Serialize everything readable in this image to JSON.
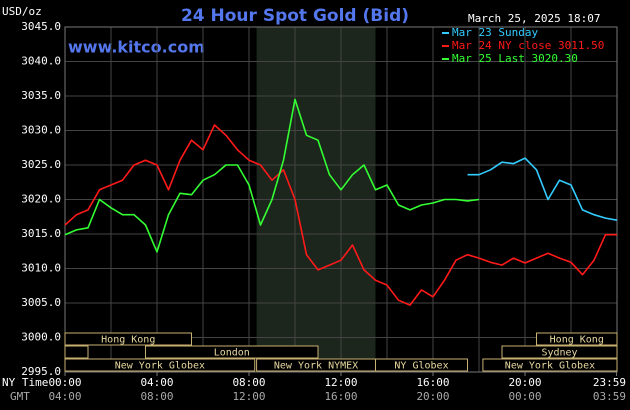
{
  "chart_data": {
    "type": "line",
    "title": "24 Hour Spot Gold (Bid)",
    "website": "www.kitco.com",
    "y_label": "USD/oz",
    "timestamp": "March 25, 2025 18:07",
    "x_row_labels": [
      "NY Time",
      "GMT"
    ],
    "x": [
      0,
      0.5,
      1,
      1.5,
      2,
      2.5,
      3,
      3.5,
      4,
      4.5,
      5,
      5.5,
      6,
      6.5,
      7,
      7.5,
      8,
      8.5,
      9,
      9.5,
      10,
      10.5,
      11,
      11.5,
      12,
      12.5,
      13,
      13.5,
      14,
      14.5,
      15,
      15.5,
      16,
      16.5,
      17,
      17.5,
      18,
      18.5,
      19,
      19.5,
      20,
      20.5,
      21,
      21.5,
      22,
      22.5,
      23,
      23.5,
      24
    ],
    "xlim": [
      0,
      24
    ],
    "xticks": [
      {
        "value": 0,
        "label": "00:00"
      },
      {
        "value": 4,
        "label": "04:00"
      },
      {
        "value": 8,
        "label": "08:00"
      },
      {
        "value": 12,
        "label": "12:00"
      },
      {
        "value": 16,
        "label": "16:00"
      },
      {
        "value": 20,
        "label": "20:00"
      },
      {
        "value": 23.98,
        "label": "23:59"
      }
    ],
    "gmt_labels": [
      "04:00",
      "08:00",
      "12:00",
      "16:00",
      "20:00",
      "00:00",
      "03:59"
    ],
    "xgrid": [
      0,
      2,
      4,
      6,
      8,
      10,
      12,
      14,
      16,
      18,
      20,
      22,
      24
    ],
    "ylim": [
      2995,
      3045
    ],
    "yticks": [
      {
        "value": 2995,
        "label": "2995.0"
      },
      {
        "value": 3000,
        "label": "3000.0"
      },
      {
        "value": 3005,
        "label": "3005.0"
      },
      {
        "value": 3010,
        "label": "3010.0"
      },
      {
        "value": 3015,
        "label": "3015.0"
      },
      {
        "value": 3020,
        "label": "3020.0"
      },
      {
        "value": 3025,
        "label": "3025.0"
      },
      {
        "value": 3030,
        "label": "3030.0"
      },
      {
        "value": 3035,
        "label": "3035.0"
      },
      {
        "value": 3040,
        "label": "3040.0"
      },
      {
        "value": 3045,
        "label": "3045.0"
      }
    ],
    "grid": true,
    "legend": "top-right",
    "highlight": [
      8.33,
      13.5
    ],
    "series": [
      {
        "name": "Mar 23 Sunday",
        "color": "#33ccff",
        "values": [
          null,
          null,
          null,
          null,
          null,
          null,
          null,
          null,
          null,
          null,
          null,
          null,
          null,
          null,
          null,
          null,
          null,
          null,
          null,
          null,
          null,
          null,
          null,
          null,
          null,
          null,
          null,
          null,
          null,
          null,
          null,
          null,
          null,
          null,
          null,
          3023.6,
          3023.6,
          3024.3,
          3025.4,
          3025.2,
          3026.0,
          3024.3,
          3020.0,
          3022.8,
          3022.1,
          3018.5,
          3017.8,
          3017.3,
          3017.0
        ]
      },
      {
        "name": "Mar 24 NY close 3011.50",
        "color": "#ff1a1a",
        "values": [
          3016.3,
          3017.8,
          3018.5,
          3021.4,
          3022.1,
          3022.8,
          3025.0,
          3025.7,
          3025.0,
          3021.4,
          3025.7,
          3028.6,
          3027.2,
          3030.8,
          3029.3,
          3027.2,
          3025.7,
          3025.0,
          3022.8,
          3024.3,
          3020.0,
          3012.0,
          3009.8,
          3010.5,
          3011.2,
          3013.4,
          3009.8,
          3008.3,
          3007.6,
          3005.4,
          3004.7,
          3006.9,
          3005.9,
          3008.3,
          3011.2,
          3012.0,
          3011.5,
          3010.9,
          3010.5,
          3011.5,
          3010.8,
          3011.5,
          3012.2,
          3011.5,
          3010.9,
          3009.1,
          3011.2,
          3014.9,
          3014.9
        ]
      },
      {
        "name": "Mar 25 Last 3020.30",
        "color": "#33ff33",
        "values": [
          3014.9,
          3015.6,
          3015.9,
          3020.0,
          3018.8,
          3017.8,
          3017.8,
          3016.3,
          3012.4,
          3017.8,
          3020.9,
          3020.7,
          3022.8,
          3023.6,
          3025.0,
          3025.0,
          3022.1,
          3016.3,
          3020.0,
          3025.7,
          3034.5,
          3029.3,
          3028.6,
          3023.6,
          3021.4,
          3023.6,
          3025.0,
          3021.4,
          3022.1,
          3019.2,
          3018.5,
          3019.2,
          3019.5,
          3020.0,
          3020.0,
          3019.8,
          3020.0,
          null,
          null,
          null,
          null,
          null,
          null,
          null,
          null,
          null,
          null,
          null,
          null
        ]
      }
    ],
    "sessions": [
      {
        "name": "Hong Kong",
        "row": 0,
        "start": 0,
        "end": 5.5
      },
      {
        "name": "Hong Kong",
        "row": 0,
        "start": 20.5,
        "end": 24
      },
      {
        "name": null,
        "row": 1,
        "start": 0,
        "end": 1
      },
      {
        "name": "London",
        "row": 1,
        "start": 3.5,
        "end": 11
      },
      {
        "name": "Sydney",
        "row": 1,
        "start": 19,
        "end": 24
      },
      {
        "name": "New York Globex",
        "row": 2,
        "start": 0,
        "end": 8.25
      },
      {
        "name": "New York NYMEX",
        "row": 2,
        "start": 8.33,
        "end": 13.5
      },
      {
        "name": "NY Globex",
        "row": 2,
        "start": 13.5,
        "end": 17.5
      },
      {
        "name": "New York Globex",
        "row": 2,
        "start": 18.17,
        "end": 24
      }
    ]
  }
}
